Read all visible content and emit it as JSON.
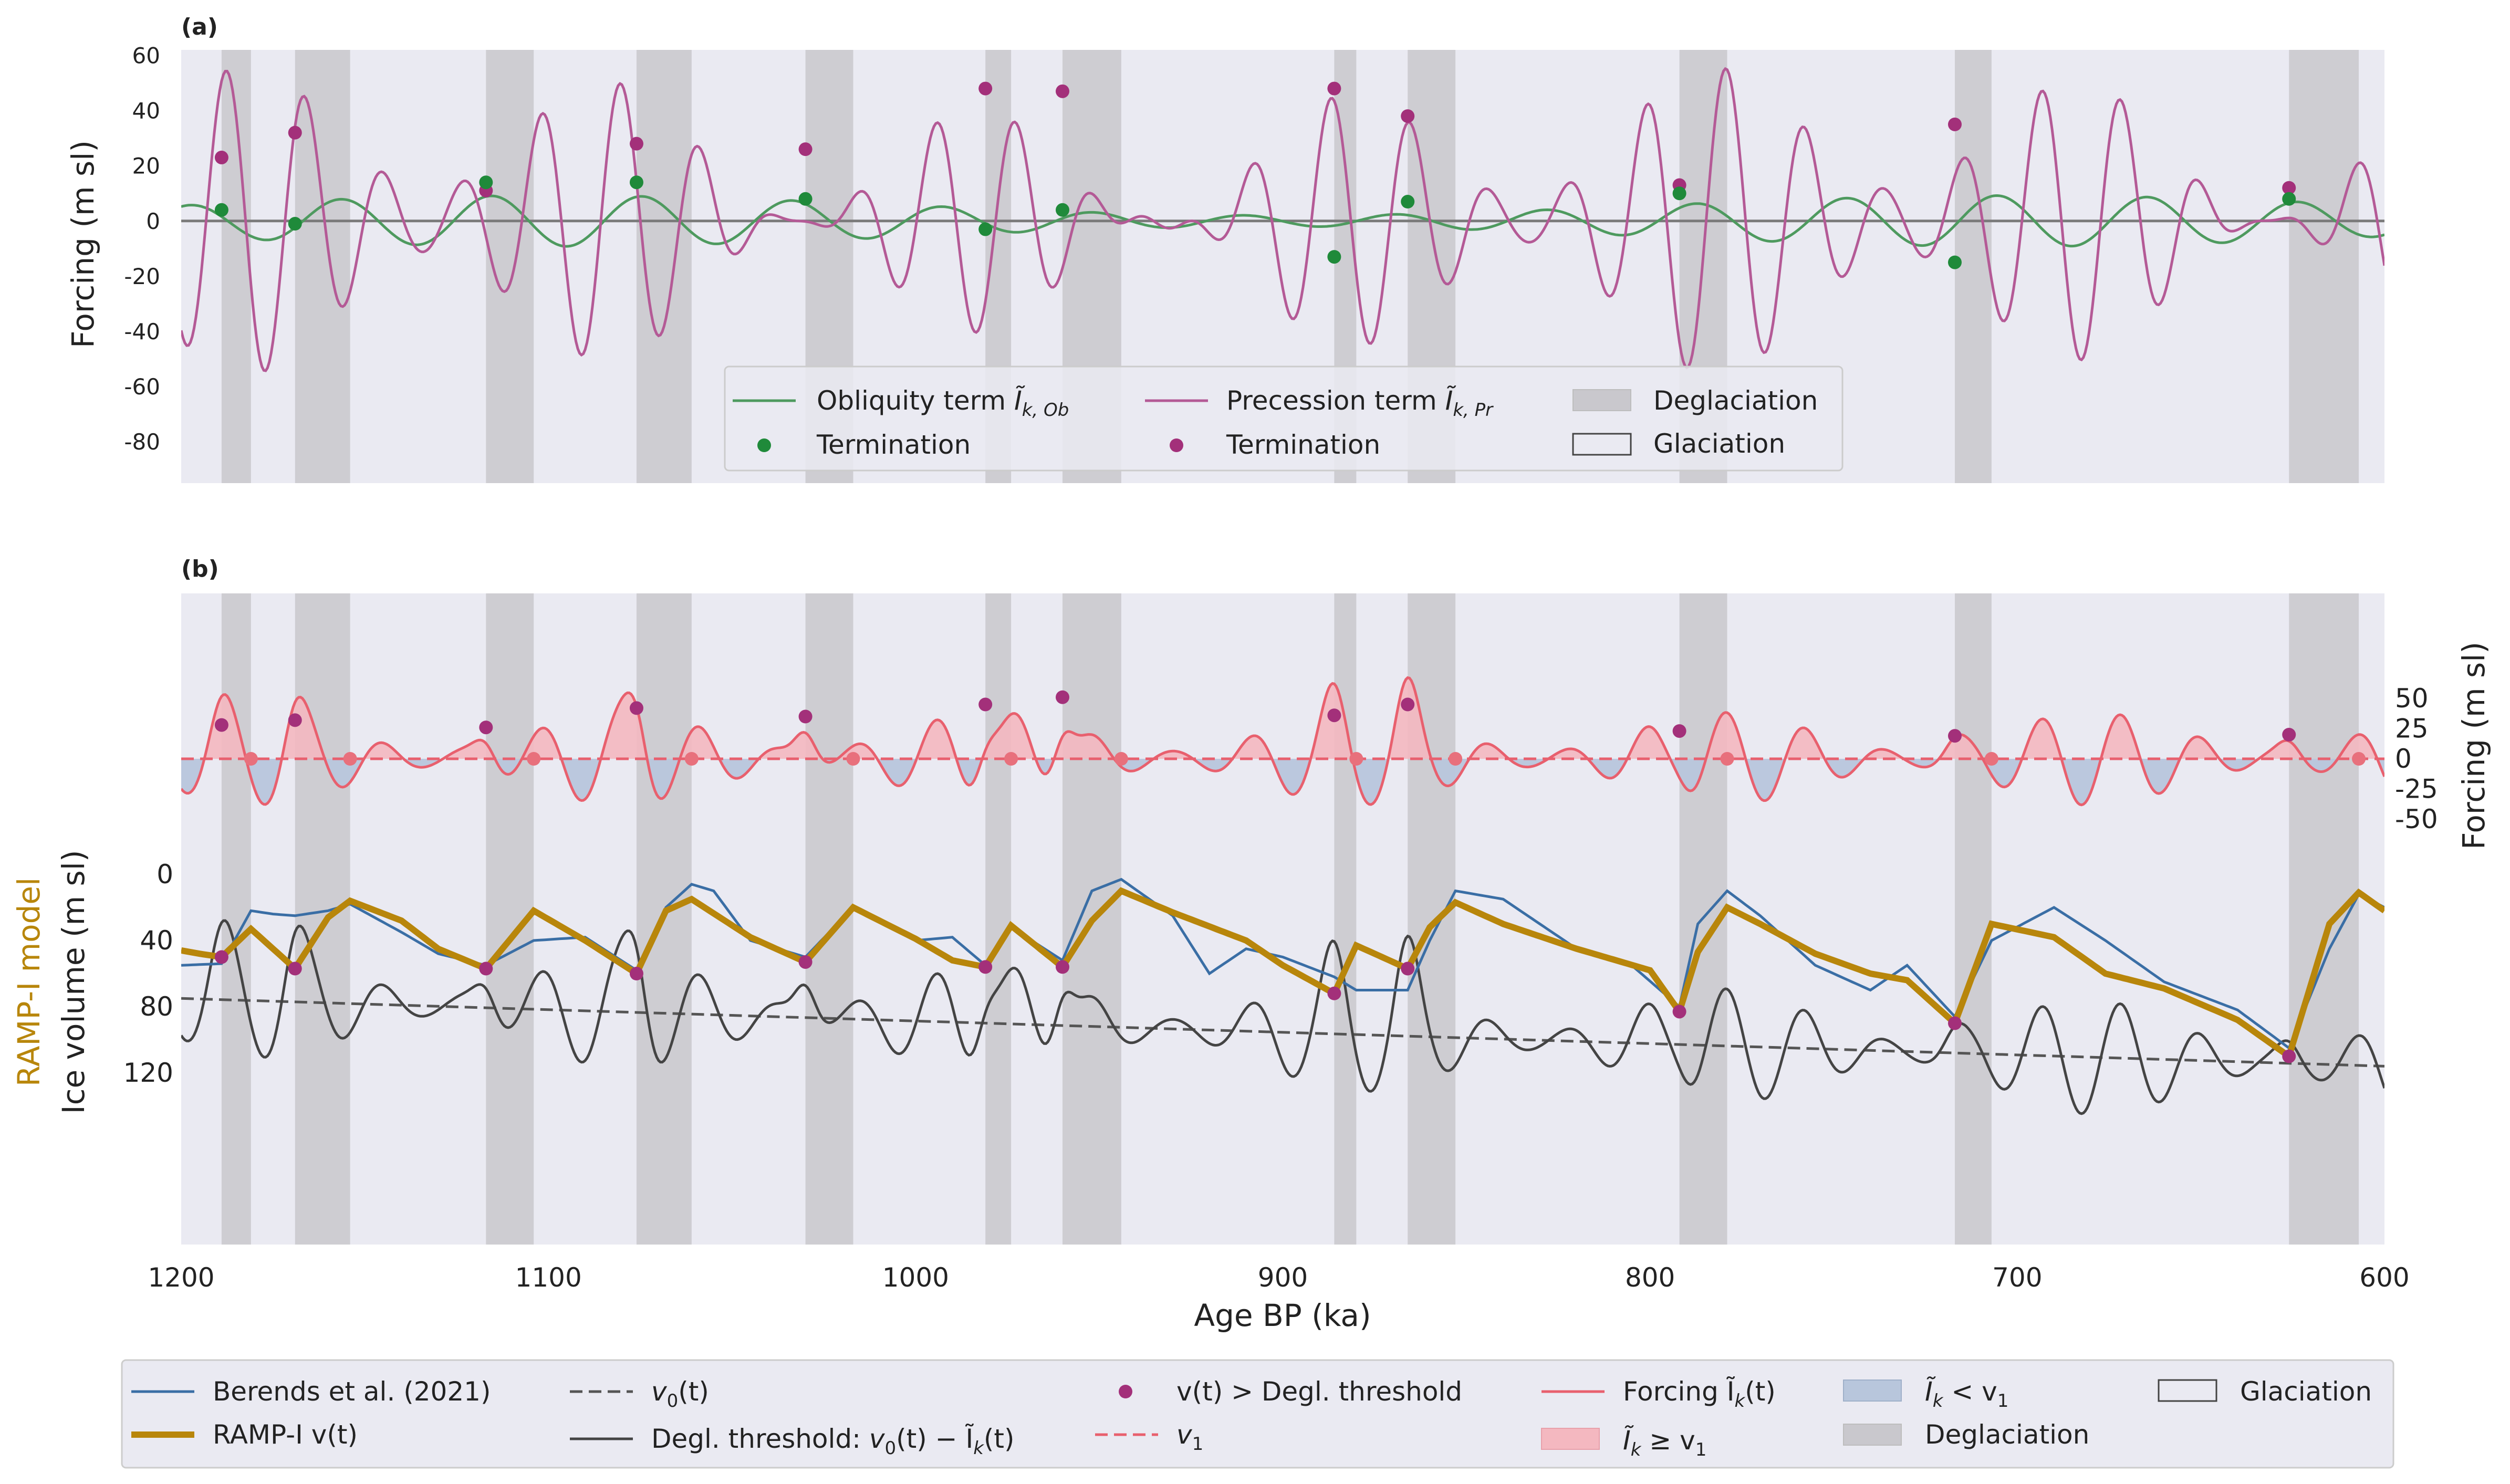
{
  "chart_data": [
    {
      "panel_label": "(a)",
      "type": "line",
      "ylabel": "Forcing (m sl)",
      "xlim": [
        1200,
        600
      ],
      "ylim": [
        -95,
        62
      ],
      "yticks": [
        60,
        40,
        20,
        0,
        -20,
        -40,
        -60,
        -80
      ],
      "grid": false,
      "legend_position": "bottom-center",
      "series": [
        {
          "name": "Obliquity term",
          "math": "Ĩ",
          "subscript": "k, Ob",
          "color": "#4e9a5f",
          "style": "line"
        },
        {
          "name": "Termination",
          "color": "#1f8a3a",
          "style": "points",
          "x": [
            1189,
            1169,
            1117,
            1076,
            1030,
            981,
            960,
            886,
            866,
            792,
            717,
            626
          ],
          "y": [
            4,
            -1,
            14,
            14,
            8,
            -3,
            4,
            -13,
            7,
            10,
            -15,
            8
          ]
        },
        {
          "name": "Precession term",
          "math": "Ĩ",
          "subscript": "k, Pr",
          "color": "#b45a96",
          "style": "line"
        },
        {
          "name": "Termination",
          "color": "#a3307a",
          "style": "points",
          "x": [
            1189,
            1169,
            1117,
            1076,
            1030,
            981,
            960,
            886,
            866,
            792,
            717,
            626
          ],
          "y": [
            23,
            32,
            11,
            28,
            26,
            48,
            47,
            48,
            38,
            13,
            35,
            12
          ]
        }
      ],
      "deglaciation_label": "Deglaciation",
      "glaciation_label": "Glaciation"
    },
    {
      "panel_label": "(b)",
      "type": "line",
      "xlabel": "Age BP (ka)",
      "xlim": [
        1200,
        600
      ],
      "xticks": [
        1200,
        1100,
        1000,
        900,
        800,
        700,
        600
      ],
      "ylabel_left": "Ice volume (m sl)",
      "ylabel_left_model": "RAMP-I model",
      "yticks_left": [
        0,
        40,
        80,
        120
      ],
      "ylabel_right": "Forcing (m sl)",
      "yticks_right": [
        50,
        25,
        0,
        -25,
        -50
      ],
      "grid": false,
      "legend_position": "below",
      "legend_items": [
        {
          "label": "Berends et al. (2021)",
          "color": "#3a6ea5",
          "style": "line"
        },
        {
          "label": "RAMP-I v(t)",
          "color": "#b8860b",
          "style": "thick-line"
        },
        {
          "math": "v",
          "subscript": "0",
          "suffix": "(t)",
          "color": "#555555",
          "style": "dashed"
        },
        {
          "label": "Degl. threshold: ",
          "math": "v",
          "subscript": "0",
          "suffix": "(t) − Ĩ",
          "subscript2": "k",
          "suffix2": "(t)",
          "color": "#444444",
          "style": "line"
        },
        {
          "label": "v(t) > Degl. threshold",
          "color": "#a3307a",
          "style": "point"
        },
        {
          "math": "v",
          "subscript": "1",
          "color": "#e8606e",
          "style": "dashed"
        },
        {
          "label": "Forcing Ĩ",
          "subscript": "k",
          "suffix": "(t)",
          "color": "#e8606e",
          "style": "line"
        },
        {
          "math": "Ĩ",
          "subscript": "k",
          "suffix": " ≥  v",
          "subscript2": "1",
          "color": "#f4b8c0",
          "style": "patch"
        },
        {
          "math": "Ĩ",
          "subscript": "k",
          "suffix": " < v",
          "subscript2": "1",
          "color": "#b8c6dc",
          "style": "patch"
        },
        {
          "label": "Deglaciation",
          "color": "#c9c8cd",
          "style": "patch"
        },
        {
          "label": "Glaciation",
          "color": "#eaeaf2",
          "style": "outline-patch"
        }
      ],
      "deglaciation_intervals_ka": [
        [
          1189,
          1181
        ],
        [
          1169,
          1154
        ],
        [
          1117,
          1104
        ],
        [
          1076,
          1061
        ],
        [
          1030,
          1017
        ],
        [
          981,
          974
        ],
        [
          960,
          944
        ],
        [
          886,
          880
        ],
        [
          866,
          853
        ],
        [
          792,
          779
        ],
        [
          717,
          707
        ],
        [
          626,
          607
        ]
      ],
      "forcing_markers_above": {
        "color": "#a3307a",
        "x": [
          1189,
          1169,
          1117,
          1076,
          1030,
          981,
          960,
          886,
          866,
          792,
          717,
          626
        ],
        "y": [
          28,
          32,
          26,
          42,
          35,
          45,
          51,
          36,
          45,
          23,
          19,
          20
        ]
      },
      "v1_crossings": {
        "color": "#e8707c",
        "x": [
          1181,
          1154,
          1104,
          1061,
          1017,
          974,
          944,
          880,
          853,
          779,
          707,
          607
        ],
        "y": [
          0,
          0,
          0,
          0,
          0,
          0,
          0,
          0,
          0,
          0,
          0,
          0
        ]
      },
      "ramp_series": {
        "name": "RAMP-I v(t)",
        "color": "#b8860b",
        "x": [
          1200,
          1195,
          1189,
          1181,
          1169,
          1160,
          1154,
          1140,
          1130,
          1117,
          1104,
          1090,
          1076,
          1068,
          1061,
          1045,
          1030,
          1017,
          1000,
          990,
          981,
          974,
          960,
          952,
          944,
          930,
          910,
          900,
          886,
          880,
          866,
          860,
          853,
          840,
          820,
          800,
          792,
          787,
          779,
          770,
          755,
          740,
          730,
          717,
          707,
          690,
          676,
          660,
          640,
          626,
          615,
          607,
          600
        ],
        "y": [
          46,
          48,
          50,
          33,
          57,
          26,
          16,
          28,
          45,
          57,
          22,
          40,
          60,
          22,
          15,
          38,
          53,
          20,
          39,
          52,
          56,
          31,
          56,
          28,
          10,
          23,
          40,
          55,
          72,
          43,
          57,
          32,
          17,
          30,
          45,
          58,
          83,
          47,
          20,
          30,
          48,
          60,
          64,
          90,
          30,
          38,
          60,
          69,
          88,
          110,
          30,
          11,
          22
        ]
      },
      "berends_series": {
        "name": "Berends et al. (2021)",
        "color": "#3a6ea5",
        "x": [
          1200,
          1189,
          1181,
          1175,
          1169,
          1160,
          1154,
          1140,
          1130,
          1117,
          1104,
          1090,
          1076,
          1068,
          1061,
          1055,
          1045,
          1030,
          1017,
          1000,
          990,
          981,
          974,
          960,
          952,
          944,
          930,
          920,
          910,
          900,
          886,
          880,
          866,
          860,
          853,
          840,
          820,
          805,
          792,
          787,
          779,
          770,
          755,
          740,
          730,
          717,
          707,
          690,
          676,
          660,
          640,
          626,
          615,
          607,
          600
        ],
        "y": [
          55,
          54,
          22,
          24,
          25,
          22,
          18,
          35,
          48,
          55,
          40,
          38,
          58,
          20,
          6,
          10,
          40,
          50,
          20,
          40,
          38,
          55,
          32,
          52,
          10,
          3,
          25,
          60,
          45,
          50,
          62,
          70,
          70,
          40,
          10,
          15,
          45,
          55,
          80,
          30,
          10,
          25,
          55,
          70,
          55,
          86,
          40,
          20,
          40,
          65,
          82,
          105,
          45,
          12,
          20
        ]
      },
      "v0_series": {
        "name": "v0(t)",
        "color": "#555555",
        "x": [
          1200,
          600
        ],
        "y": [
          75,
          116
        ]
      }
    }
  ]
}
